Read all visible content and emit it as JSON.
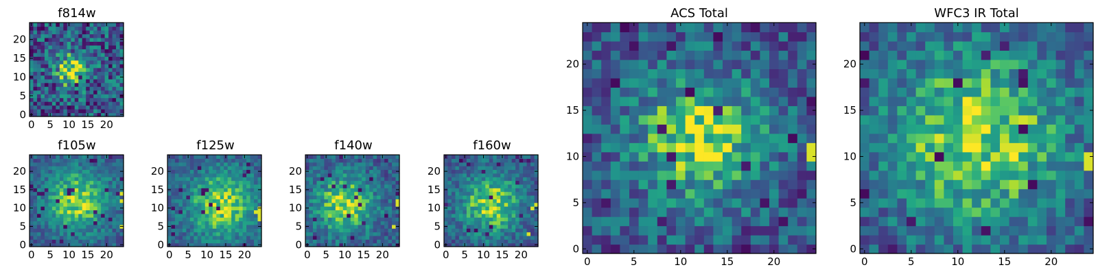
{
  "chart_data": [
    {
      "id": "f814w",
      "type": "heatmap",
      "title": "f814w",
      "grid_size": [
        25,
        25
      ],
      "xlim": [
        -0.5,
        24.5
      ],
      "ylim": [
        -0.5,
        24.5
      ],
      "xticks": [
        0,
        5,
        10,
        15,
        20
      ],
      "yticks": [
        0,
        5,
        10,
        15,
        20
      ],
      "colormap": "viridis",
      "peak": [
        11,
        12
      ],
      "spread": 3.2,
      "noise": 0.7,
      "seed": 11,
      "hot_pixels": []
    },
    {
      "id": "f105w",
      "type": "heatmap",
      "title": "f105w",
      "grid_size": [
        25,
        25
      ],
      "xlim": [
        -0.5,
        24.5
      ],
      "ylim": [
        -0.5,
        24.5
      ],
      "xticks": [
        0,
        5,
        10,
        15,
        20
      ],
      "yticks": [
        0,
        5,
        10,
        15,
        20
      ],
      "colormap": "viridis",
      "peak": [
        12,
        12
      ],
      "spread": 6.5,
      "noise": 0.35,
      "seed": 23,
      "hot_pixels": [
        [
          24,
          14
        ],
        [
          24,
          12
        ],
        [
          24,
          5
        ]
      ]
    },
    {
      "id": "f125w",
      "type": "heatmap",
      "title": "f125w",
      "grid_size": [
        25,
        25
      ],
      "xlim": [
        -0.5,
        24.5
      ],
      "ylim": [
        -0.5,
        24.5
      ],
      "xticks": [
        0,
        5,
        10,
        15,
        20
      ],
      "yticks": [
        0,
        5,
        10,
        15,
        20
      ],
      "colormap": "viridis",
      "peak": [
        14,
        11
      ],
      "spread": 7,
      "noise": 0.35,
      "seed": 37,
      "hot_pixels": [
        [
          24,
          10
        ],
        [
          24,
          9
        ],
        [
          24,
          8
        ],
        [
          24,
          7
        ],
        [
          23,
          9
        ]
      ]
    },
    {
      "id": "f140w",
      "type": "heatmap",
      "title": "f140w",
      "grid_size": [
        25,
        25
      ],
      "xlim": [
        -0.5,
        24.5
      ],
      "ylim": [
        -0.5,
        24.5
      ],
      "xticks": [
        0,
        5,
        10,
        15,
        20
      ],
      "yticks": [
        0,
        5,
        10,
        15,
        20
      ],
      "colormap": "viridis",
      "peak": [
        10,
        11
      ],
      "spread": 6,
      "noise": 0.4,
      "seed": 41,
      "hot_pixels": [
        [
          24,
          12
        ],
        [
          24,
          11
        ],
        [
          23,
          5
        ]
      ]
    },
    {
      "id": "f160w",
      "type": "heatmap",
      "title": "f160w",
      "grid_size": [
        25,
        25
      ],
      "xlim": [
        -0.5,
        24.5
      ],
      "ylim": [
        -0.5,
        24.5
      ],
      "xticks": [
        0,
        5,
        10,
        15,
        20
      ],
      "yticks": [
        0,
        5,
        10,
        15,
        20
      ],
      "colormap": "viridis",
      "peak": [
        12,
        11
      ],
      "spread": 6,
      "noise": 0.4,
      "seed": 53,
      "hot_pixels": [
        [
          24,
          11
        ],
        [
          23,
          10
        ],
        [
          22,
          3
        ]
      ]
    },
    {
      "id": "acs_total",
      "type": "heatmap",
      "title": "ACS Total",
      "grid_size": [
        25,
        25
      ],
      "xlim": [
        -0.5,
        24.5
      ],
      "ylim": [
        -0.5,
        24.5
      ],
      "xticks": [
        0,
        5,
        10,
        15,
        20
      ],
      "yticks": [
        0,
        5,
        10,
        15,
        20
      ],
      "colormap": "viridis",
      "peak": [
        12,
        12
      ],
      "spread": 5,
      "noise": 0.5,
      "seed": 67,
      "hot_pixels": [
        [
          24,
          11
        ],
        [
          24,
          10
        ],
        [
          10,
          9
        ]
      ]
    },
    {
      "id": "wfc3_ir_total",
      "type": "heatmap",
      "title": "WFC3 IR Total",
      "grid_size": [
        25,
        25
      ],
      "xlim": [
        -0.5,
        24.5
      ],
      "ylim": [
        -0.5,
        24.5
      ],
      "xticks": [
        0,
        5,
        10,
        15,
        20
      ],
      "yticks": [
        0,
        5,
        10,
        15,
        20
      ],
      "colormap": "viridis",
      "peak": [
        12,
        12
      ],
      "spread": 7,
      "noise": 0.45,
      "seed": 79,
      "hot_pixels": [
        [
          11,
          12
        ],
        [
          12,
          12
        ],
        [
          15,
          11
        ],
        [
          16,
          11
        ],
        [
          17,
          11
        ],
        [
          24,
          10
        ],
        [
          24,
          9
        ]
      ]
    }
  ]
}
